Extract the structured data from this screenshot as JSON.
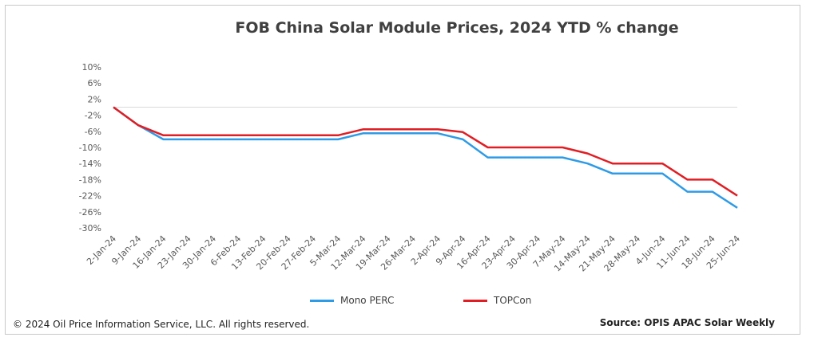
{
  "chart_data": {
    "type": "line",
    "title": "FOB China Solar Module Prices, 2024 YTD % change",
    "x": [
      "2-Jan-24",
      "9-Jan-24",
      "16-Jan-24",
      "23-Jan-24",
      "30-Jan-24",
      "6-Feb-24",
      "13-Feb-24",
      "20-Feb-24",
      "27-Feb-24",
      "5-Mar-24",
      "12-Mar-24",
      "19-Mar-24",
      "26-Mar-24",
      "2-Apr-24",
      "9-Apr-24",
      "16-Apr-24",
      "23-Apr-24",
      "30-Apr-24",
      "7-May-24",
      "14-May-24",
      "21-May-24",
      "28-May-24",
      "4-Jun-24",
      "11-Jun-24",
      "18-Jun-24",
      "25-Jun-24"
    ],
    "y_ticks": [
      "10%",
      "6%",
      "2%",
      "-2%",
      "-6%",
      "-10%",
      "-14%",
      "-18%",
      "-22%",
      "-26%",
      "-30%"
    ],
    "ylim": [
      -30,
      10
    ],
    "series": [
      {
        "name": "Mono PERC",
        "color": "#2e9be6",
        "values": [
          0,
          -4.5,
          -8,
          -8,
          -8,
          -8,
          -8,
          -8,
          -8,
          -8,
          -6.5,
          -6.5,
          -6.5,
          -6.5,
          -8,
          -12.5,
          -12.5,
          -12.5,
          -12.5,
          -14,
          -16.5,
          -16.5,
          -16.5,
          -21,
          -21,
          -25
        ]
      },
      {
        "name": "TOPCon",
        "color": "#e01e24",
        "values": [
          0,
          -4.5,
          -7,
          -7,
          -7,
          -7,
          -7,
          -7,
          -7,
          -7,
          -5.5,
          -5.5,
          -5.5,
          -5.5,
          -6.2,
          -10,
          -10,
          -10,
          -10,
          -11.5,
          -14,
          -14,
          -14,
          -18,
          -18,
          -22
        ]
      }
    ],
    "grid": false,
    "legend_position": "bottom"
  },
  "footer": {
    "copyright": "© 2024 Oil Price Information Service, LLC. All rights reserved.",
    "source": "Source: OPIS APAC Solar Weekly"
  }
}
